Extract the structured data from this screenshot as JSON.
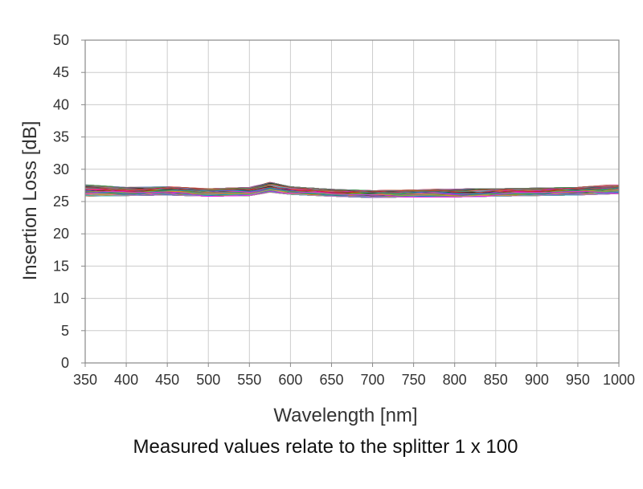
{
  "chart_data": {
    "type": "line",
    "title": "",
    "xlabel": "Wavelength [nm]",
    "ylabel": "Insertion Loss [dB]",
    "caption": "Measured values relate to the splitter 1 x 100",
    "xlim": [
      350,
      1000
    ],
    "ylim": [
      0,
      50
    ],
    "x_ticks": [
      350,
      400,
      450,
      500,
      550,
      600,
      650,
      700,
      750,
      800,
      850,
      900,
      950,
      1000
    ],
    "y_ticks": [
      0,
      5,
      10,
      15,
      20,
      25,
      30,
      35,
      40,
      45,
      50
    ],
    "grid": true,
    "legend": "none",
    "series_count": 100,
    "envelope_note": "Many overlapping channel traces lie in a narrow band around 26-27 dB.",
    "x": [
      350,
      400,
      450,
      500,
      550,
      575,
      600,
      650,
      700,
      750,
      800,
      850,
      900,
      950,
      1000
    ],
    "mean_values": [
      26.7,
      26.5,
      26.6,
      26.4,
      26.5,
      27.2,
      26.7,
      26.3,
      26.1,
      26.2,
      26.2,
      26.4,
      26.5,
      26.6,
      26.9
    ],
    "band_min": [
      25.8,
      25.9,
      26.0,
      25.8,
      25.9,
      26.4,
      26.1,
      25.8,
      25.6,
      25.7,
      25.7,
      25.8,
      25.9,
      26.0,
      26.2
    ],
    "band_max": [
      27.6,
      27.2,
      27.3,
      27.0,
      27.2,
      28.0,
      27.3,
      26.9,
      26.7,
      26.8,
      27.0,
      27.0,
      27.1,
      27.2,
      27.7
    ],
    "colors": [
      "#e41a1c",
      "#377eb8",
      "#4daf4a",
      "#984ea3",
      "#ff7f00",
      "#b5a800",
      "#a65628",
      "#f781bf",
      "#17becf",
      "#000000",
      "#1f77b4",
      "#2ca02c",
      "#d62728",
      "#9467bd",
      "#8c564b",
      "#e377c2",
      "#7f7f7f",
      "#bcbd22",
      "#00a0a0",
      "#ff00ff"
    ]
  }
}
